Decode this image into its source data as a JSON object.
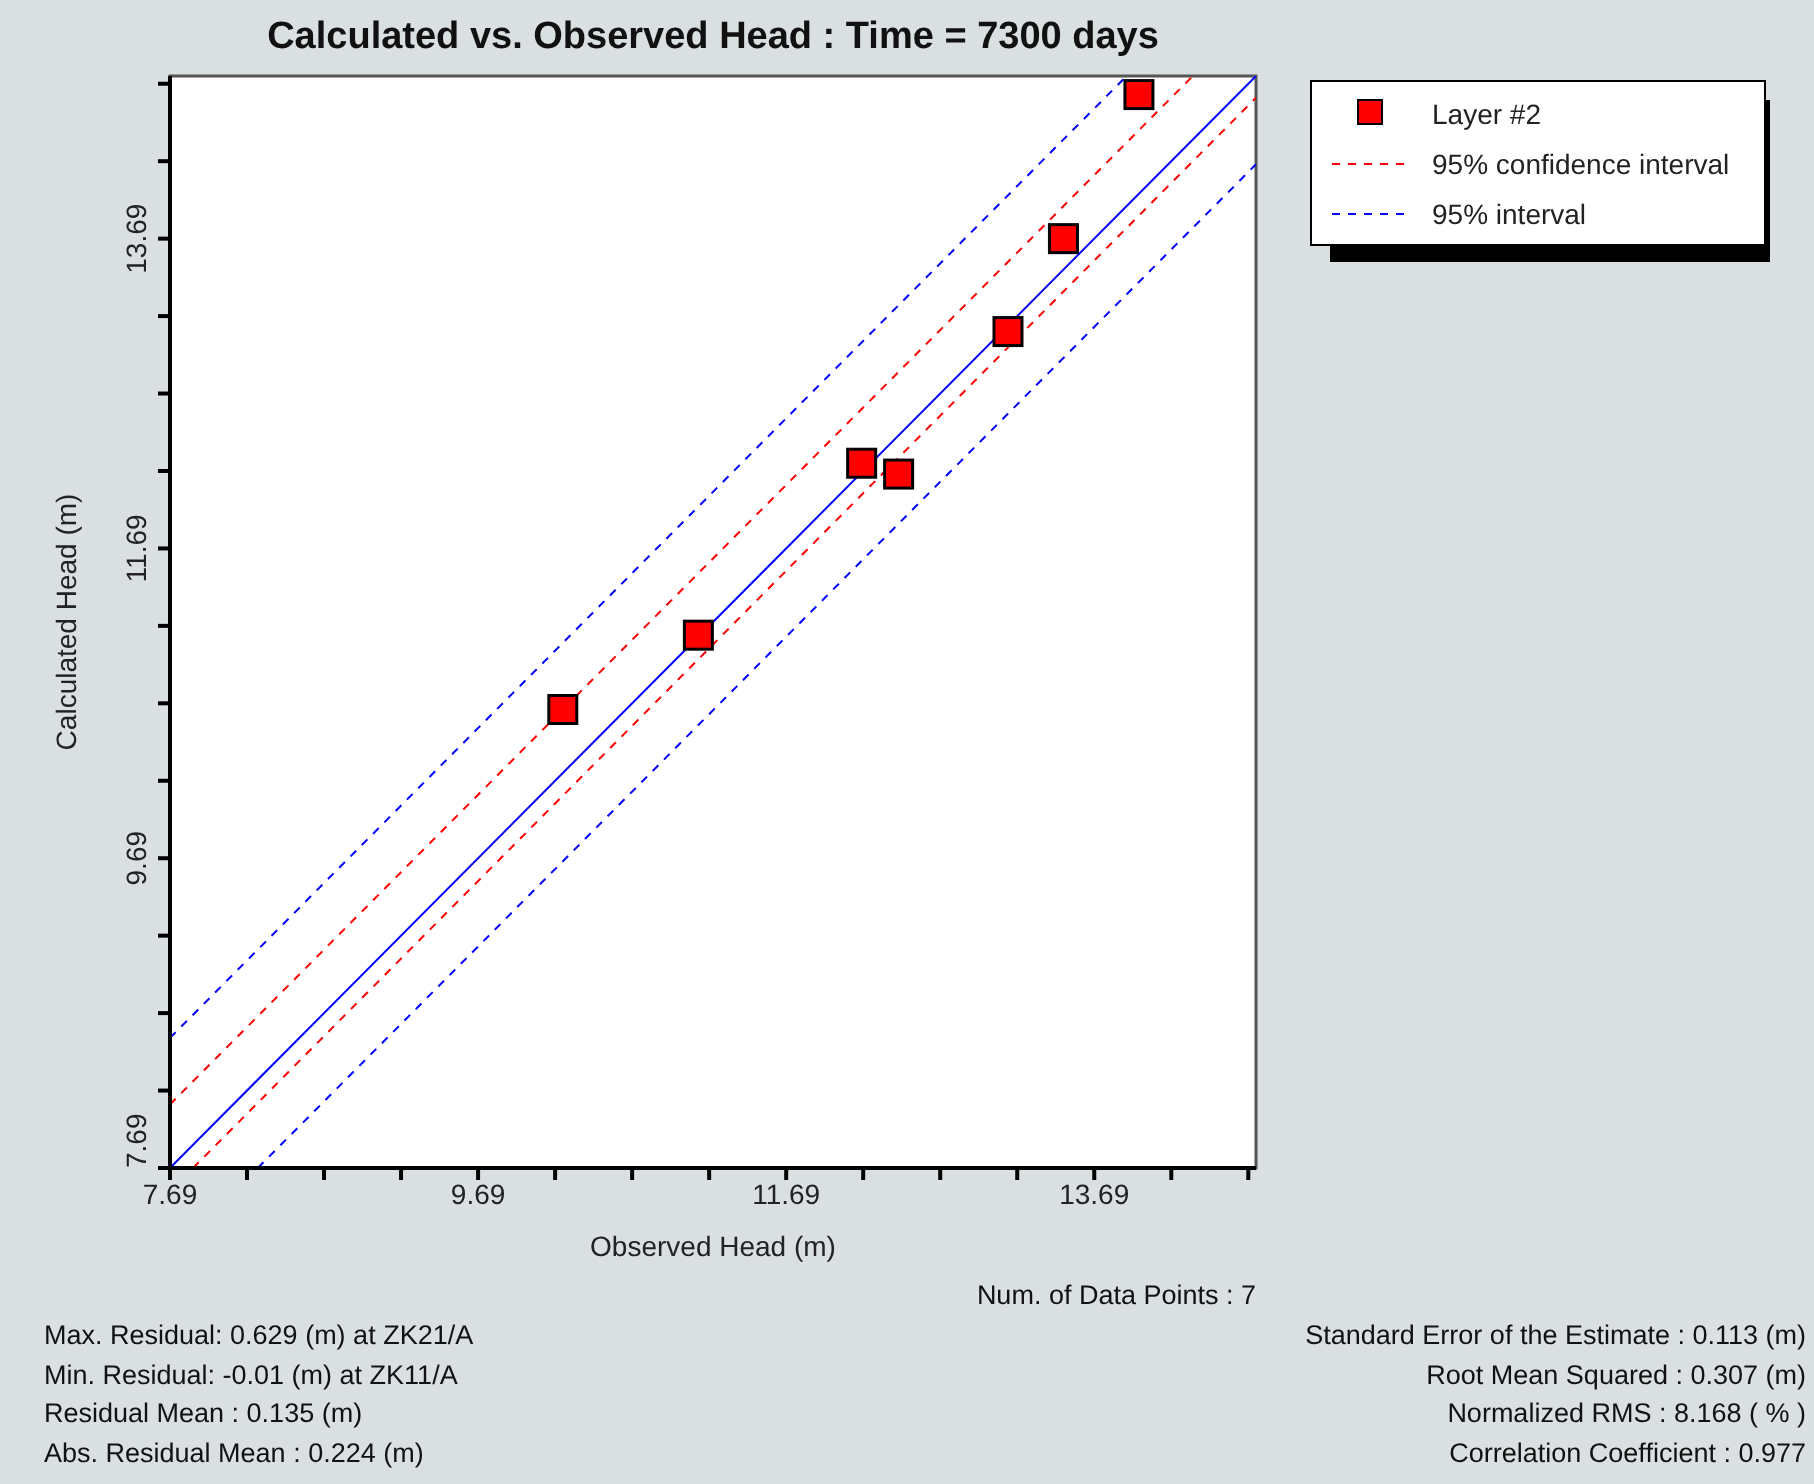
{
  "chart_data": {
    "type": "scatter",
    "title": "Calculated vs. Observed Head : Time = 7300 days",
    "xlabel": "Observed Head (m)",
    "ylabel": "Calculated Head (m)",
    "xlim": [
      7.69,
      14.74
    ],
    "ylim": [
      7.69,
      14.74
    ],
    "xticks": [
      7.69,
      {
        "value": 8.19,
        "label": null
      },
      {
        "value": 8.69,
        "label": null
      },
      {
        "value": 9.19,
        "label": null
      },
      9.69,
      {
        "value": 10.19,
        "label": null
      },
      {
        "value": 10.69,
        "label": null
      },
      {
        "value": 11.19,
        "label": null
      },
      11.69,
      {
        "value": 12.19,
        "label": null
      },
      {
        "value": 12.69,
        "label": null
      },
      {
        "value": 13.19,
        "label": null
      },
      13.69,
      {
        "value": 14.19,
        "label": null
      },
      {
        "value": 14.69,
        "label": null
      }
    ],
    "yticks": [
      7.69,
      {
        "value": 8.19,
        "label": null
      },
      {
        "value": 8.69,
        "label": null
      },
      {
        "value": 9.19,
        "label": null
      },
      9.69,
      {
        "value": 10.19,
        "label": null
      },
      {
        "value": 10.69,
        "label": null
      },
      {
        "value": 11.19,
        "label": null
      },
      11.69,
      {
        "value": 12.19,
        "label": null
      },
      {
        "value": 12.69,
        "label": null
      },
      {
        "value": 13.19,
        "label": null
      },
      13.69,
      {
        "value": 14.19,
        "label": null
      },
      {
        "value": 14.69,
        "label": null
      }
    ],
    "legend": "top right",
    "marker": "square",
    "series": [
      {
        "name": "Layer #2",
        "color": "#ff0000",
        "x": [
          10.24,
          11.12,
          12.18,
          12.42,
          13.13,
          13.49,
          13.98
        ],
        "values": [
          10.65,
          11.13,
          12.24,
          12.17,
          13.09,
          13.69,
          14.62
        ]
      },
      {
        "type": "line",
        "color": "#0000ff",
        "line_style": "solid",
        "marker": "none",
        "x": [
          7.69,
          14.74
        ],
        "values": [
          7.69,
          14.74
        ]
      },
      {
        "name": "95% confidence interval",
        "type": "line",
        "color": "#ff0000",
        "line_style": "dashed",
        "marker": "none",
        "x": [
          7.69,
          14.33
        ],
        "values": [
          8.1,
          14.74
        ]
      },
      {
        "type": "line",
        "color": "#ff0000",
        "line_style": "dashed",
        "marker": "none",
        "x": [
          7.84,
          14.74
        ],
        "values": [
          7.69,
          14.6
        ]
      },
      {
        "name": "95% interval",
        "type": "line",
        "color": "#0000ff",
        "line_style": "dashed",
        "marker": "none",
        "x": [
          7.69,
          13.9
        ],
        "values": [
          8.53,
          14.74
        ]
      },
      {
        "type": "line",
        "color": "#0000ff",
        "line_style": "dashed",
        "marker": "none",
        "x": [
          8.26,
          14.74
        ],
        "values": [
          7.69,
          14.17
        ]
      }
    ],
    "annotations": [
      "Num. of Data Points : 7",
      "Max. Residual: 0.629 (m) at ZK21/A",
      "Min. Residual: -0.01 (m) at ZK11/A",
      "Residual Mean : 0.135 (m)",
      "Abs. Residual Mean : 0.224 (m)",
      "Standard Error of the Estimate : 0.113 (m)",
      "Root Mean Squared : 0.307 (m)",
      "Normalized RMS : 8.168 ( % )",
      "Correlation Coefficient : 0.977"
    ]
  }
}
